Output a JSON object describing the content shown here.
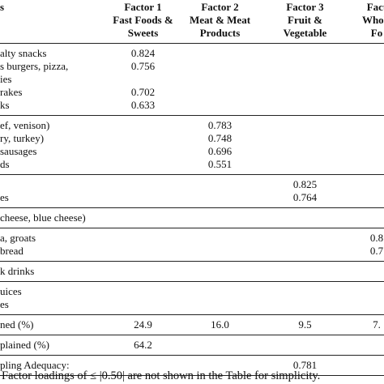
{
  "table": {
    "header": [
      [
        "s"
      ],
      [
        "Factor 1",
        "Fast Foods &",
        "Sweets"
      ],
      [
        "Factor 2",
        "Meat & Meat",
        "Products"
      ],
      [
        "Factor 3",
        "Fruit &",
        "Vegetable"
      ],
      [
        "Fact",
        "Whole",
        "Fo"
      ]
    ],
    "groups": [
      [
        [
          "alty snacks",
          "0.824",
          null,
          null,
          null
        ],
        [
          "s burgers, pizza,\nies",
          "0.756",
          null,
          null,
          null
        ],
        [
          "rakes",
          "0.702",
          null,
          null,
          null
        ],
        [
          "ks",
          "0.633",
          null,
          null,
          null
        ]
      ],
      [
        [
          "ef, venison)",
          null,
          "0.783",
          null,
          null
        ],
        [
          "ry, turkey)",
          null,
          "0.748",
          null,
          null
        ],
        [
          "sausages",
          null,
          "0.696",
          null,
          null
        ],
        [
          "ds",
          null,
          "0.551",
          null,
          null
        ]
      ],
      [
        [
          null,
          null,
          null,
          "0.825",
          null
        ],
        [
          "es",
          null,
          null,
          "0.764",
          null
        ]
      ],
      [
        [
          "cheese, blue cheese)",
          null,
          null,
          null,
          null
        ]
      ],
      [
        [
          "a, groats",
          null,
          null,
          null,
          "0.8"
        ],
        [
          "bread",
          null,
          null,
          null,
          "0.7"
        ]
      ],
      [
        [
          "k drinks",
          null,
          null,
          null,
          null
        ]
      ],
      [
        [
          "uices",
          null,
          null,
          null,
          null
        ],
        [
          "es",
          null,
          null,
          null,
          null
        ]
      ],
      [
        [
          "ned (%)",
          "24.9",
          "16.0",
          "9.5",
          "7."
        ]
      ],
      [
        [
          "plained (%)",
          "64.2",
          null,
          null,
          null
        ]
      ],
      [
        [
          "pling Adequacy:",
          null,
          null,
          "0.781",
          null
        ]
      ]
    ]
  },
  "footnote": "Factor loadings of ≤ |0.50| are not shown in the Table for simplicity."
}
